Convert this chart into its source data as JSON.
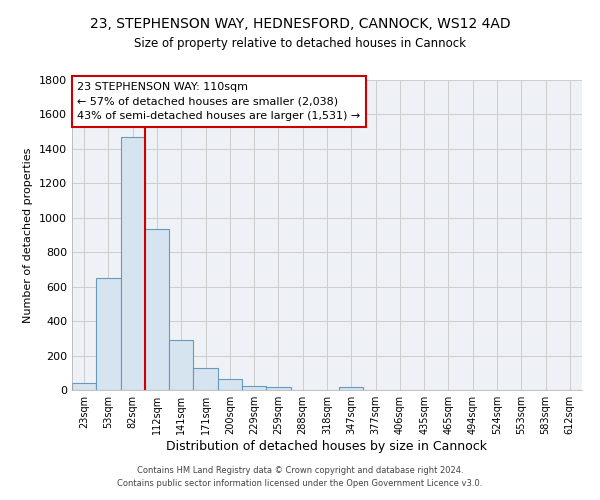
{
  "title": "23, STEPHENSON WAY, HEDNESFORD, CANNOCK, WS12 4AD",
  "subtitle": "Size of property relative to detached houses in Cannock",
  "xlabel": "Distribution of detached houses by size in Cannock",
  "ylabel": "Number of detached properties",
  "bar_labels": [
    "23sqm",
    "53sqm",
    "82sqm",
    "112sqm",
    "141sqm",
    "171sqm",
    "200sqm",
    "229sqm",
    "259sqm",
    "288sqm",
    "318sqm",
    "347sqm",
    "377sqm",
    "406sqm",
    "435sqm",
    "465sqm",
    "494sqm",
    "524sqm",
    "553sqm",
    "583sqm",
    "612sqm"
  ],
  "bar_values": [
    38,
    651,
    1471,
    937,
    290,
    125,
    62,
    25,
    15,
    0,
    0,
    15,
    0,
    0,
    0,
    0,
    0,
    0,
    0,
    0,
    0
  ],
  "bar_color": "#d6e4f0",
  "bar_edge_color": "#6699bb",
  "grid_color": "#cccccc",
  "vline_color": "#cc0000",
  "annotation_text": "23 STEPHENSON WAY: 110sqm\n← 57% of detached houses are smaller (2,038)\n43% of semi-detached houses are larger (1,531) →",
  "annotation_box_color": "#ffffff",
  "annotation_box_edge": "#cc0000",
  "ylim": [
    0,
    1800
  ],
  "yticks": [
    0,
    200,
    400,
    600,
    800,
    1000,
    1200,
    1400,
    1600,
    1800
  ],
  "footer": "Contains HM Land Registry data © Crown copyright and database right 2024.\nContains public sector information licensed under the Open Government Licence v3.0.",
  "bg_color": "#eef2f7"
}
